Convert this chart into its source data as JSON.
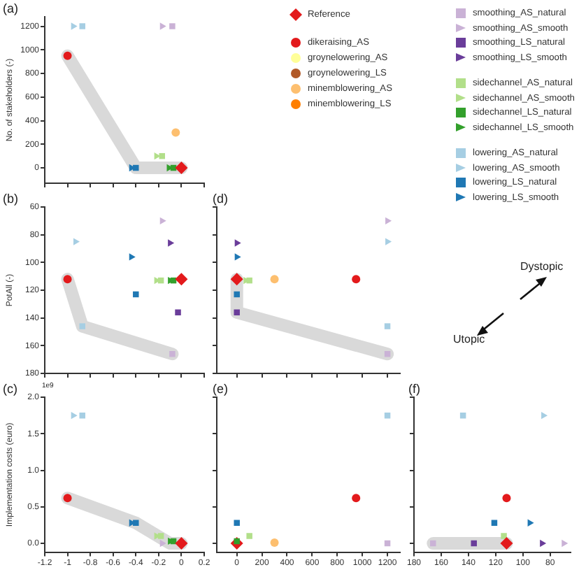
{
  "chart_data": [
    {
      "type": "scatter",
      "title": "(a)",
      "ylabel": "No. of stakeholders (-)",
      "xlim": [
        -1.2,
        0.2
      ],
      "xticks": [
        -1.2,
        -1.0,
        -0.8,
        -0.6,
        -0.4,
        -0.2,
        0.0,
        0.2
      ],
      "ylim": [
        -130,
        1280
      ],
      "yticks": [
        0,
        200,
        400,
        600,
        800,
        1000,
        1200
      ],
      "tick_labels": "y",
      "legend": "right",
      "series": [
        {
          "name": "Reference",
          "color": "#e31a1c",
          "marker": "diamond",
          "x": [
            0.0
          ],
          "values": [
            0
          ]
        },
        {
          "name": "dikeraising_AS",
          "color": "#e31a1c",
          "marker": "circle",
          "x": [
            -1.0
          ],
          "values": [
            950
          ]
        },
        {
          "name": "groynelowering_AS",
          "color": "#ffff99",
          "marker": "circle",
          "x": [
            null
          ],
          "values": [
            null
          ]
        },
        {
          "name": "groynelowering_LS",
          "color": "#b15928",
          "marker": "circle",
          "x": [
            null
          ],
          "values": [
            null
          ]
        },
        {
          "name": "minemblowering_AS",
          "color": "#fdbf6f",
          "marker": "circle",
          "x": [
            -0.05
          ],
          "values": [
            300
          ]
        },
        {
          "name": "minemblowering_LS",
          "color": "#ff7f00",
          "marker": "circle",
          "x": [
            null
          ],
          "values": [
            null
          ]
        },
        {
          "name": "smoothing_AS_natural",
          "color": "#cab2d6",
          "marker": "square",
          "x": [
            -0.08
          ],
          "values": [
            1200
          ]
        },
        {
          "name": "smoothing_AS_smooth",
          "color": "#cab2d6",
          "marker": "triangle",
          "x": [
            -0.17
          ],
          "values": [
            1200
          ]
        },
        {
          "name": "smoothing_LS_natural",
          "color": "#6a3d9a",
          "marker": "square",
          "x": [
            null
          ],
          "values": [
            null
          ]
        },
        {
          "name": "smoothing_LS_smooth",
          "color": "#6a3d9a",
          "marker": "triangle",
          "x": [
            null
          ],
          "values": [
            null
          ]
        },
        {
          "name": "sidechannel_AS_natural",
          "color": "#b2df8a",
          "marker": "square",
          "x": [
            -0.17
          ],
          "values": [
            100
          ]
        },
        {
          "name": "sidechannel_AS_smooth",
          "color": "#b2df8a",
          "marker": "triangle",
          "x": [
            -0.22
          ],
          "values": [
            100
          ]
        },
        {
          "name": "sidechannel_LS_natural",
          "color": "#33a02c",
          "marker": "square",
          "x": [
            -0.07
          ],
          "values": [
            0
          ]
        },
        {
          "name": "sidechannel_LS_smooth",
          "color": "#33a02c",
          "marker": "triangle",
          "x": [
            -0.11
          ],
          "values": [
            0
          ]
        },
        {
          "name": "lowering_AS_natural",
          "color": "#a6cee3",
          "marker": "square",
          "x": [
            -0.87
          ],
          "values": [
            1200
          ]
        },
        {
          "name": "lowering_AS_smooth",
          "color": "#a6cee3",
          "marker": "triangle",
          "x": [
            -0.95
          ],
          "values": [
            1200
          ]
        },
        {
          "name": "lowering_LS_natural",
          "color": "#1f78b4",
          "marker": "square",
          "x": [
            -0.4
          ],
          "values": [
            0
          ]
        },
        {
          "name": "lowering_LS_smooth",
          "color": "#1f78b4",
          "marker": "triangle",
          "x": [
            -0.44
          ],
          "values": [
            0
          ]
        },
        {
          "type": "line",
          "color": "#d9d9d9",
          "marker": "none",
          "x": [
            -1.0,
            -0.4,
            0.0
          ],
          "values": [
            950,
            0,
            0
          ]
        }
      ]
    },
    {
      "type": "scatter",
      "title": "(b)",
      "ylabel": "PotAll (-)",
      "xlim": [
        -1.2,
        0.2
      ],
      "xticks": [
        -1.2,
        -1.0,
        -0.8,
        -0.6,
        -0.4,
        -0.2,
        0.0,
        0.2
      ],
      "ylim": [
        180,
        60
      ],
      "yticks": [
        60,
        80,
        100,
        120,
        140,
        160,
        180
      ],
      "tick_labels": "y",
      "series": [
        {
          "color": "#e31a1c",
          "marker": "diamond",
          "x": [
            0.0
          ],
          "values": [
            112
          ]
        },
        {
          "color": "#e31a1c",
          "marker": "circle",
          "x": [
            -1.0
          ],
          "values": [
            112
          ]
        },
        {
          "color": "#cab2d6",
          "marker": "square",
          "x": [
            -0.08
          ],
          "values": [
            166
          ]
        },
        {
          "color": "#cab2d6",
          "marker": "triangle",
          "x": [
            -0.17
          ],
          "values": [
            70
          ]
        },
        {
          "color": "#6a3d9a",
          "marker": "square",
          "x": [
            -0.03
          ],
          "values": [
            136
          ]
        },
        {
          "color": "#6a3d9a",
          "marker": "triangle",
          "x": [
            -0.1
          ],
          "values": [
            86
          ]
        },
        {
          "color": "#b2df8a",
          "marker": "square",
          "x": [
            -0.18
          ],
          "values": [
            113
          ]
        },
        {
          "color": "#b2df8a",
          "marker": "triangle",
          "x": [
            -0.22
          ],
          "values": [
            113
          ]
        },
        {
          "color": "#33a02c",
          "marker": "square",
          "x": [
            -0.07
          ],
          "values": [
            113
          ]
        },
        {
          "color": "#33a02c",
          "marker": "triangle",
          "x": [
            -0.1
          ],
          "values": [
            113
          ]
        },
        {
          "color": "#a6cee3",
          "marker": "square",
          "x": [
            -0.87
          ],
          "values": [
            146
          ]
        },
        {
          "color": "#a6cee3",
          "marker": "triangle",
          "x": [
            -0.93
          ],
          "values": [
            85
          ]
        },
        {
          "color": "#1f78b4",
          "marker": "square",
          "x": [
            -0.4
          ],
          "values": [
            123
          ]
        },
        {
          "color": "#1f78b4",
          "marker": "triangle",
          "x": [
            -0.44
          ],
          "values": [
            96
          ]
        },
        {
          "type": "line",
          "color": "#d9d9d9",
          "marker": "none",
          "x": [
            -1.0,
            -0.87,
            -0.08
          ],
          "values": [
            112,
            146,
            166
          ]
        }
      ]
    },
    {
      "type": "scatter",
      "title": "(d)",
      "xlim": [
        -160,
        1300
      ],
      "xticks": [
        0,
        200,
        400,
        600,
        800,
        1000,
        1200
      ],
      "ylim": [
        180,
        60
      ],
      "yticks": [
        60,
        80,
        100,
        120,
        140,
        160,
        180
      ],
      "tick_labels": false,
      "annotations": [
        "Dystopic",
        "Utopic"
      ],
      "series": [
        {
          "color": "#e31a1c",
          "marker": "diamond",
          "x": [
            0
          ],
          "values": [
            112
          ]
        },
        {
          "color": "#e31a1c",
          "marker": "circle",
          "x": [
            950
          ],
          "values": [
            112
          ]
        },
        {
          "color": "#fdbf6f",
          "marker": "circle",
          "x": [
            300
          ],
          "values": [
            112
          ]
        },
        {
          "color": "#cab2d6",
          "marker": "square",
          "x": [
            1200
          ],
          "values": [
            166
          ]
        },
        {
          "color": "#cab2d6",
          "marker": "triangle",
          "x": [
            1200
          ],
          "values": [
            70
          ]
        },
        {
          "color": "#6a3d9a",
          "marker": "square",
          "x": [
            0
          ],
          "values": [
            136
          ]
        },
        {
          "color": "#6a3d9a",
          "marker": "triangle",
          "x": [
            0
          ],
          "values": [
            86
          ]
        },
        {
          "color": "#b2df8a",
          "marker": "square",
          "x": [
            100
          ],
          "values": [
            113
          ]
        },
        {
          "color": "#b2df8a",
          "marker": "triangle",
          "x": [
            70
          ],
          "values": [
            113
          ]
        },
        {
          "color": "#a6cee3",
          "marker": "square",
          "x": [
            1200
          ],
          "values": [
            146
          ]
        },
        {
          "color": "#a6cee3",
          "marker": "triangle",
          "x": [
            1200
          ],
          "values": [
            85
          ]
        },
        {
          "color": "#1f78b4",
          "marker": "square",
          "x": [
            0
          ],
          "values": [
            123
          ]
        },
        {
          "color": "#1f78b4",
          "marker": "triangle",
          "x": [
            0
          ],
          "values": [
            96
          ]
        },
        {
          "type": "line",
          "color": "#d9d9d9",
          "marker": "none",
          "x": [
            0,
            0,
            1200
          ],
          "values": [
            112,
            136,
            166
          ]
        }
      ]
    },
    {
      "type": "scatter",
      "title": "(c)",
      "ylabel": "Implementation costs (euro)",
      "annotations": [
        "1e9"
      ],
      "xlim": [
        -1.2,
        0.2
      ],
      "xticks": [
        -1.2,
        -1.0,
        -0.8,
        -0.6,
        -0.4,
        -0.2,
        0.0,
        0.2
      ],
      "ylim": [
        -0.12,
        2.0
      ],
      "yticks": [
        {
          "value": 0,
          "label": "0.0"
        },
        {
          "value": 0.5,
          "label": "0.5"
        },
        {
          "value": 1,
          "label": "1.0"
        },
        {
          "value": 1.5,
          "label": "1.5"
        },
        {
          "value": 2,
          "label": "2.0"
        }
      ],
      "series": [
        {
          "color": "#e31a1c",
          "marker": "diamond",
          "x": [
            0.0
          ],
          "values": [
            0
          ]
        },
        {
          "color": "#e31a1c",
          "marker": "circle",
          "x": [
            -1.0
          ],
          "values": [
            0.62
          ]
        },
        {
          "color": "#cab2d6",
          "marker": "triangle",
          "x": [
            -0.17
          ],
          "values": [
            0
          ]
        },
        {
          "color": "#b2df8a",
          "marker": "square",
          "x": [
            -0.18
          ],
          "values": [
            0.1
          ]
        },
        {
          "color": "#b2df8a",
          "marker": "triangle",
          "x": [
            -0.22
          ],
          "values": [
            0.1
          ]
        },
        {
          "color": "#33a02c",
          "marker": "square",
          "x": [
            -0.07
          ],
          "values": [
            0.03
          ]
        },
        {
          "color": "#33a02c",
          "marker": "triangle",
          "x": [
            -0.1
          ],
          "values": [
            0.03
          ]
        },
        {
          "color": "#a6cee3",
          "marker": "square",
          "x": [
            -0.87
          ],
          "values": [
            1.75
          ]
        },
        {
          "color": "#a6cee3",
          "marker": "triangle",
          "x": [
            -0.95
          ],
          "values": [
            1.75
          ]
        },
        {
          "color": "#1f78b4",
          "marker": "square",
          "x": [
            -0.4
          ],
          "values": [
            0.28
          ]
        },
        {
          "color": "#1f78b4",
          "marker": "triangle",
          "x": [
            -0.44
          ],
          "values": [
            0.28
          ]
        },
        {
          "type": "line",
          "color": "#d9d9d9",
          "marker": "none",
          "x": [
            -1.0,
            -0.4,
            -0.1,
            0.0
          ],
          "values": [
            0.62,
            0.28,
            0,
            0
          ]
        }
      ]
    },
    {
      "type": "scatter",
      "title": "(e)",
      "xlim": [
        -160,
        1300
      ],
      "xticks": [
        0,
        200,
        400,
        600,
        800,
        1000,
        1200
      ],
      "ylim": [
        -0.12,
        2.0
      ],
      "yticks": [
        0,
        0.5,
        1,
        1.5,
        2
      ],
      "tick_labels": "x",
      "series": [
        {
          "color": "#33a02c",
          "marker": "square",
          "x": [
            0
          ],
          "values": [
            0.03
          ]
        },
        {
          "color": "#e31a1c",
          "marker": "diamond",
          "x": [
            0
          ],
          "values": [
            0
          ]
        },
        {
          "color": "#e31a1c",
          "marker": "circle",
          "x": [
            950
          ],
          "values": [
            0.62
          ]
        },
        {
          "color": "#fdbf6f",
          "marker": "circle",
          "x": [
            300
          ],
          "values": [
            0.01
          ]
        },
        {
          "color": "#cab2d6",
          "marker": "square",
          "x": [
            1200
          ],
          "values": [
            0
          ]
        },
        {
          "color": "#b2df8a",
          "marker": "square",
          "x": [
            100
          ],
          "values": [
            0.1
          ]
        },
        {
          "color": "#a6cee3",
          "marker": "square",
          "x": [
            1200
          ],
          "values": [
            1.75
          ]
        },
        {
          "color": "#1f78b4",
          "marker": "square",
          "x": [
            0
          ],
          "values": [
            0.28
          ]
        }
      ]
    },
    {
      "type": "scatter",
      "title": "(f)",
      "xlim": [
        180,
        65
      ],
      "xticks": [
        180,
        160,
        140,
        120,
        100,
        80
      ],
      "ylim": [
        -0.12,
        2.0
      ],
      "yticks": [
        0,
        0.5,
        1,
        1.5,
        2
      ],
      "tick_labels": "x",
      "series": [
        {
          "color": "#e31a1c",
          "marker": "diamond",
          "x": [
            112
          ],
          "values": [
            0
          ]
        },
        {
          "color": "#e31a1c",
          "marker": "circle",
          "x": [
            112
          ],
          "values": [
            0.62
          ]
        },
        {
          "color": "#cab2d6",
          "marker": "square",
          "x": [
            166
          ],
          "values": [
            0
          ]
        },
        {
          "color": "#cab2d6",
          "marker": "triangle",
          "x": [
            70
          ],
          "values": [
            0
          ]
        },
        {
          "color": "#6a3d9a",
          "marker": "square",
          "x": [
            136
          ],
          "values": [
            0
          ]
        },
        {
          "color": "#6a3d9a",
          "marker": "triangle",
          "x": [
            86
          ],
          "values": [
            0
          ]
        },
        {
          "color": "#b2df8a",
          "marker": "square",
          "x": [
            114
          ],
          "values": [
            0.1
          ]
        },
        {
          "color": "#33a02c",
          "marker": "square",
          "x": [
            null
          ],
          "values": [
            null
          ]
        },
        {
          "color": "#a6cee3",
          "marker": "square",
          "x": [
            144
          ],
          "values": [
            1.75
          ]
        },
        {
          "color": "#a6cee3",
          "marker": "triangle",
          "x": [
            85
          ],
          "values": [
            1.75
          ]
        },
        {
          "color": "#1f78b4",
          "marker": "square",
          "x": [
            121
          ],
          "values": [
            0.28
          ]
        },
        {
          "color": "#1f78b4",
          "marker": "triangle",
          "x": [
            95
          ],
          "values": [
            0.28
          ]
        },
        {
          "type": "line",
          "color": "#d9d9d9",
          "marker": "none",
          "x": [
            166,
            112
          ],
          "values": [
            0,
            0
          ]
        }
      ]
    }
  ]
}
